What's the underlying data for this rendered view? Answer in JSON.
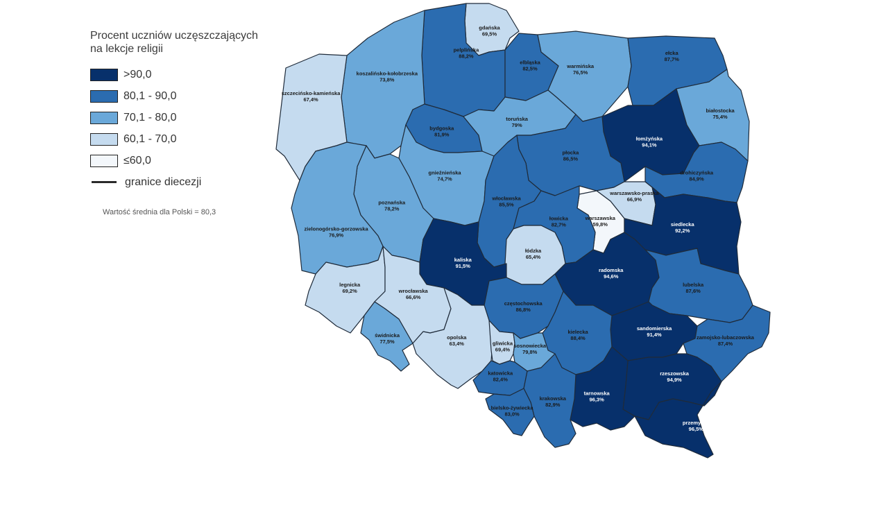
{
  "legend": {
    "title_line1": "Procent uczniów uczęszczających",
    "title_line2": "na lekcje religii",
    "classes": [
      {
        "label": ">90,0",
        "color": "#07306b"
      },
      {
        "label": "80,1 - 90,0",
        "color": "#2b6cb0"
      },
      {
        "label": "70,1 - 80,0",
        "color": "#6aa8d9"
      },
      {
        "label": "60,1 - 70,0",
        "color": "#c5dbef"
      },
      {
        "label": "≤60,0",
        "color": "#f3f7fb"
      }
    ],
    "boundary_label": "granice diecezji"
  },
  "note": "Wartość średnia dla Polski = 80,3",
  "dioceses": [
    {
      "name": "gdańska",
      "value": "69,5%",
      "cls": 3
    },
    {
      "name": "pelplińska",
      "value": "88,2%",
      "cls": 1
    },
    {
      "name": "elbląska",
      "value": "82,5%",
      "cls": 1
    },
    {
      "name": "warmińska",
      "value": "76,5%",
      "cls": 2
    },
    {
      "name": "ełcka",
      "value": "87,7%",
      "cls": 1
    },
    {
      "name": "koszalińsko-kołobrzeska",
      "value": "73,8%",
      "cls": 2
    },
    {
      "name": "szczecińsko-kamieńska",
      "value": "67,4%",
      "cls": 3
    },
    {
      "name": "bydgoska",
      "value": "81,9%",
      "cls": 1
    },
    {
      "name": "toruńska",
      "value": "79%",
      "cls": 2
    },
    {
      "name": "łomżyńska",
      "value": "94,1%",
      "cls": 0
    },
    {
      "name": "białostocka",
      "value": "75,4%",
      "cls": 2
    },
    {
      "name": "gnieźnieńska",
      "value": "74,7%",
      "cls": 2
    },
    {
      "name": "płocka",
      "value": "86,5%",
      "cls": 1
    },
    {
      "name": "drohiczyńska",
      "value": "84,9%",
      "cls": 1
    },
    {
      "name": "poznańska",
      "value": "78,2%",
      "cls": 2
    },
    {
      "name": "włocławska",
      "value": "85,5%",
      "cls": 1
    },
    {
      "name": "warszawsko-praska",
      "value": "66,9%",
      "cls": 3
    },
    {
      "name": "warszawska",
      "value": "59,8%",
      "cls": 4
    },
    {
      "name": "łowicka",
      "value": "82,7%",
      "cls": 1
    },
    {
      "name": "siedlecka",
      "value": "92,2%",
      "cls": 0
    },
    {
      "name": "zielonogórsko-gorzowska",
      "value": "76,9%",
      "cls": 2
    },
    {
      "name": "łódzka",
      "value": "65,4%",
      "cls": 3
    },
    {
      "name": "kaliska",
      "value": "91,5%",
      "cls": 0
    },
    {
      "name": "legnicka",
      "value": "69,2%",
      "cls": 3
    },
    {
      "name": "radomska",
      "value": "94,6%",
      "cls": 0
    },
    {
      "name": "wrocławska",
      "value": "66,6%",
      "cls": 3
    },
    {
      "name": "lubelska",
      "value": "87,6%",
      "cls": 1
    },
    {
      "name": "częstochowska",
      "value": "86,8%",
      "cls": 1
    },
    {
      "name": "świdnicka",
      "value": "77,5%",
      "cls": 2
    },
    {
      "name": "sandomierska",
      "value": "91,4%",
      "cls": 0
    },
    {
      "name": "kielecka",
      "value": "88,4%",
      "cls": 1
    },
    {
      "name": "zamojsko-lubaczowska",
      "value": "87,4%",
      "cls": 1
    },
    {
      "name": "opolska",
      "value": "63,4%",
      "cls": 3
    },
    {
      "name": "gliwicka",
      "value": "69,4%",
      "cls": 3
    },
    {
      "name": "sosnowiecka",
      "value": "79,8%",
      "cls": 2
    },
    {
      "name": "katowicka",
      "value": "82,4%",
      "cls": 1
    },
    {
      "name": "rzeszowska",
      "value": "94,9%",
      "cls": 0
    },
    {
      "name": "tarnowska",
      "value": "96,3%",
      "cls": 0
    },
    {
      "name": "krakowska",
      "value": "82,9%",
      "cls": 1
    },
    {
      "name": "przemyska",
      "value": "96,5%",
      "cls": 0
    },
    {
      "name": "bielsko-żywiecka",
      "value": "83,0%",
      "cls": 1
    }
  ]
}
